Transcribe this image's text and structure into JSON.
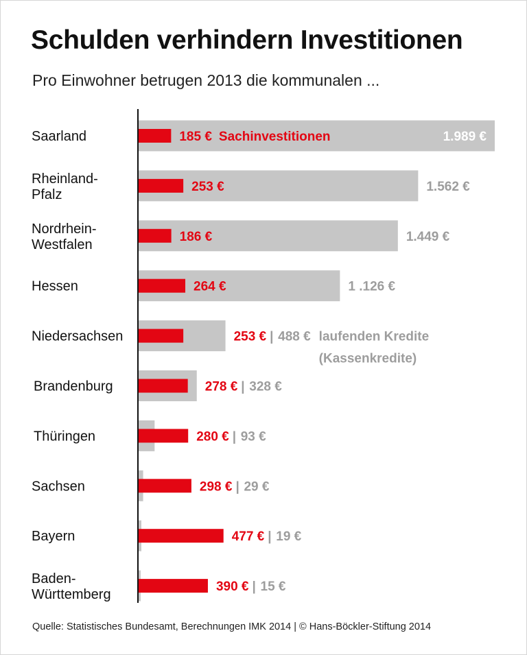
{
  "title": "Schulden verhindern Investitionen",
  "subtitle": "Pro Einwohner betrugen 2013 die kommunalen ...",
  "footer": "Quelle: Statistisches Bundesamt, Berechnungen IMK 2014 | © Hans-Böckler-Stiftung 2014",
  "chart_data": {
    "type": "bar",
    "orientation": "horizontal",
    "categories": [
      [
        "Saarland"
      ],
      [
        "Rheinland-",
        "Pfalz"
      ],
      [
        "Nordrhein-",
        "Westfalen"
      ],
      [
        "Hessen"
      ],
      [
        "Niedersachsen"
      ],
      [
        "Brandenburg"
      ],
      [
        "Thüringen"
      ],
      [
        "Sachsen"
      ],
      [
        "Bayern"
      ],
      [
        "Baden-",
        "Württemberg"
      ]
    ],
    "series": [
      {
        "name": "Sachinvestitionen",
        "unit": "€",
        "color": "#e30613",
        "values": [
          185,
          253,
          186,
          264,
          253,
          278,
          280,
          298,
          477,
          390
        ],
        "labels": [
          "185 €",
          "253 €",
          "186 €",
          "264 €",
          "253 €",
          "278 €",
          "280 €",
          "298 €",
          "477 €",
          "390 €"
        ]
      },
      {
        "name": "laufenden Kredite (Kassenkredite)",
        "unit": "€",
        "color": "#c6c6c6",
        "values": [
          1989,
          1562,
          1449,
          1126,
          488,
          328,
          93,
          29,
          19,
          15
        ],
        "labels": [
          "1.989 €",
          "1.562 €",
          "1.449 €",
          "1 .126 €",
          "488 €",
          "328 €",
          "93 €",
          "29 €",
          "19 €",
          "15 €"
        ]
      }
    ],
    "series_annotations": {
      "red": "Sachinvestitionen",
      "gray_line1": "laufenden Kredite",
      "gray_line2": "(Kassenkredite)"
    },
    "separator": "|",
    "xlim": [
      0,
      1989
    ],
    "grid": false
  }
}
